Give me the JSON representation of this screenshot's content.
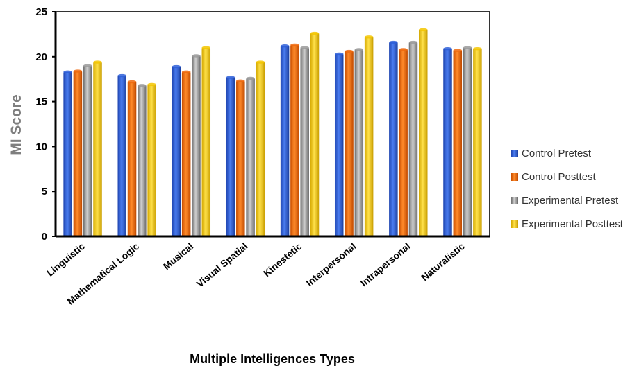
{
  "chart_data": {
    "type": "bar",
    "title": "",
    "xlabel": "Multiple Intelligences Types",
    "ylabel": "MI Score",
    "ylim": [
      0,
      25
    ],
    "yticks": [
      0,
      5,
      10,
      15,
      20,
      25
    ],
    "grid": false,
    "legend_position": "right",
    "categories": [
      "Linguistic",
      "Mathematical Logic",
      "Musical",
      "Visual Spatial",
      "Kinestetic",
      "Interpersonal",
      "Intrapersonal",
      "Naturalistic"
    ],
    "series": [
      {
        "name": "Control Pretest",
        "color": "#2e5fd8",
        "values": [
          18.3,
          17.9,
          18.9,
          17.7,
          21.2,
          20.3,
          21.6,
          20.9
        ]
      },
      {
        "name": "Control Posttest",
        "color": "#ee6a0f",
        "values": [
          18.4,
          17.2,
          18.3,
          17.3,
          21.3,
          20.6,
          20.8,
          20.7
        ]
      },
      {
        "name": "Experimental Pretest",
        "color": "#9a9a9a",
        "values": [
          19.0,
          16.8,
          20.1,
          17.6,
          21.0,
          20.8,
          21.6,
          21.0
        ]
      },
      {
        "name": "Experimental Posttest",
        "color": "#f3c600",
        "values": [
          19.4,
          16.9,
          21.0,
          19.4,
          22.6,
          22.2,
          23.0,
          20.9
        ]
      }
    ]
  }
}
